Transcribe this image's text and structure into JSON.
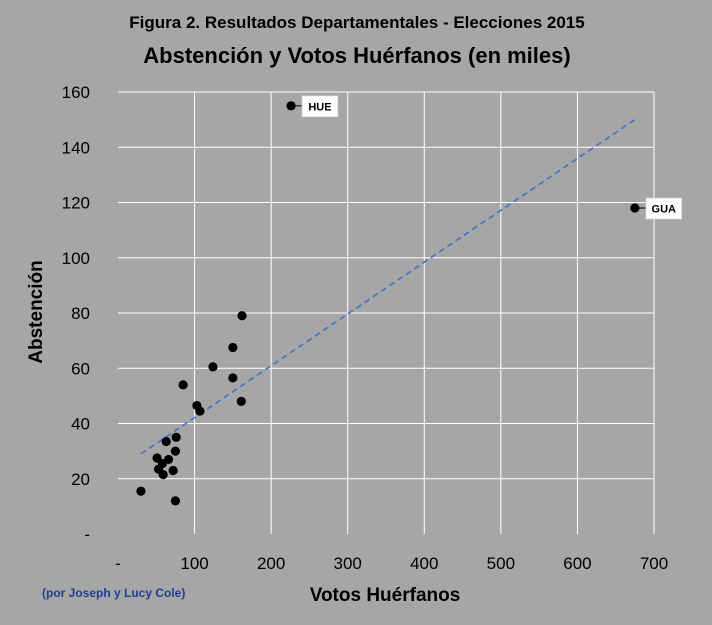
{
  "chart_data": {
    "type": "scatter",
    "supertitle": "Figura 2. Resultados Departamentales  - Elecciones 2015",
    "title": "Abstención y Votos Huérfanos (en miles)",
    "xlabel": "Votos Huérfanos",
    "ylabel": "Abstención",
    "xlim": [
      0,
      700
    ],
    "ylim": [
      0,
      160
    ],
    "x_ticks": [
      0,
      100,
      200,
      300,
      400,
      500,
      600,
      700
    ],
    "x_tick_labels": [
      "-",
      "100",
      "200",
      "300",
      "400",
      "500",
      "600",
      "700"
    ],
    "y_ticks": [
      0,
      20,
      40,
      60,
      80,
      100,
      120,
      140,
      160
    ],
    "y_tick_labels": [
      "-",
      "20",
      "40",
      "60",
      "80",
      "100",
      "120",
      "140",
      "160"
    ],
    "grid": true,
    "points": [
      {
        "x": 226,
        "y": 155,
        "label": "HUE"
      },
      {
        "x": 675,
        "y": 118,
        "label": "GUA"
      },
      {
        "x": 162,
        "y": 79
      },
      {
        "x": 150,
        "y": 67.5
      },
      {
        "x": 124,
        "y": 60.5
      },
      {
        "x": 150,
        "y": 56.5
      },
      {
        "x": 85,
        "y": 54
      },
      {
        "x": 161,
        "y": 48
      },
      {
        "x": 103,
        "y": 46.5
      },
      {
        "x": 107,
        "y": 44.5
      },
      {
        "x": 76,
        "y": 35
      },
      {
        "x": 63,
        "y": 33.5
      },
      {
        "x": 75,
        "y": 30
      },
      {
        "x": 51,
        "y": 27.5
      },
      {
        "x": 66,
        "y": 27
      },
      {
        "x": 58,
        "y": 25.5
      },
      {
        "x": 53,
        "y": 23.5
      },
      {
        "x": 72,
        "y": 23
      },
      {
        "x": 59,
        "y": 21.5
      },
      {
        "x": 30,
        "y": 15.5
      },
      {
        "x": 75,
        "y": 12
      }
    ],
    "trendline": {
      "x": [
        30,
        675
      ],
      "y": [
        29,
        150
      ],
      "style": "dashed",
      "color": "#4472c4"
    },
    "marker_color": "#000000",
    "background_color": "#a6a6a6",
    "grid_color": "#ffffff"
  },
  "credit": "(por Joseph y Lucy Cole)"
}
